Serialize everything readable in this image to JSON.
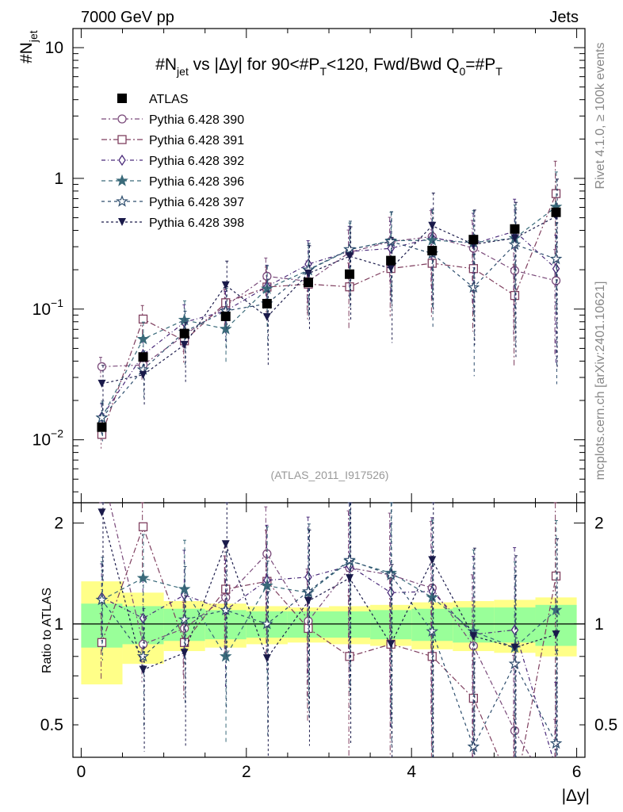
{
  "header": {
    "left": "7000 GeV pp",
    "right": "Jets"
  },
  "side_labels": {
    "rivet": "Rivet 4.1.0, ≥ 100k events",
    "mcplots": "mcplots.cern.ch [arXiv:2401.10621]"
  },
  "watermark": "(ATLAS_2011_I917526)",
  "colors": {
    "p390": "#7a4a7a",
    "p391": "#7f3f5f",
    "p392": "#4a2a7a",
    "p396": "#3a6a7a",
    "p397": "#2e4e6e",
    "p398": "#1a1a4a",
    "band_inner": "#99ff99",
    "band_outer": "#ffff88"
  },
  "chart_data": {
    "type": "scatter",
    "title": "#N_jet vs |Δy| for 90<#P_T<120, Fwd/Bwd Q0=#P_T",
    "title_parts": {
      "t1": "#N",
      "t1sub": "jet",
      "t2": " vs |Δy| for 90<#P",
      "t2sub": "T",
      "t3": "<120, Fwd/Bwd Q",
      "t3sub": "0",
      "t4": "=#P",
      "t4sub": "T"
    },
    "ylabel_parts": {
      "main": "#N",
      "sub": "jet"
    },
    "ratio_ylabel": "Ratio to ATLAS",
    "xlabel": "|Δy|",
    "x_range": [
      -0.1,
      6.1
    ],
    "y_range": [
      0.0033,
      14
    ],
    "y_scale": "log",
    "ratio_range": [
      0.4,
      2.3
    ],
    "x_ticks": [
      "0",
      "2",
      "4",
      "6"
    ],
    "y_ticks": [
      {
        "v": 10,
        "base": "10",
        "exp": ""
      },
      {
        "v": 1,
        "base": "1",
        "exp": ""
      },
      {
        "v": 0.1,
        "base": "10",
        "exp": "−1"
      },
      {
        "v": 0.01,
        "base": "10",
        "exp": "−2"
      }
    ],
    "ratio_ticks": [
      "0.5",
      "1",
      "2"
    ],
    "x": [
      0.25,
      0.75,
      1.25,
      1.75,
      2.25,
      2.75,
      3.25,
      3.75,
      4.25,
      4.75,
      5.25,
      5.75
    ],
    "atlas": {
      "name": "ATLAS",
      "values": [
        0.0125,
        0.043,
        0.065,
        0.088,
        0.11,
        0.16,
        0.185,
        0.235,
        0.28,
        0.34,
        0.41,
        0.55
      ],
      "band_inner": [
        0.15,
        0.13,
        0.11,
        0.1,
        0.09,
        0.09,
        0.09,
        0.1,
        0.11,
        0.12,
        0.12,
        0.14
      ],
      "band_outer": [
        0.34,
        0.24,
        0.17,
        0.15,
        0.13,
        0.12,
        0.13,
        0.14,
        0.16,
        0.17,
        0.18,
        0.2
      ]
    },
    "series": [
      {
        "name": "Pythia 6.428 390",
        "color_key": "p390",
        "marker": "circle",
        "dash": "6,3,2,3",
        "ratio": [
          2.9,
          0.87,
          0.97,
          1.2,
          1.62,
          1.02,
          1.47,
          1.4,
          1.28,
          0.86,
          0.48,
          0.3
        ]
      },
      {
        "name": "Pythia 6.428 391",
        "color_key": "p391",
        "marker": "square",
        "dash": "7,3,2,3",
        "ratio": [
          0.88,
          1.95,
          0.88,
          1.27,
          1.34,
          0.97,
          0.8,
          0.87,
          0.8,
          0.6,
          0.31,
          1.39
        ]
      },
      {
        "name": "Pythia 6.428 392",
        "color_key": "p392",
        "marker": "diamond",
        "dash": "5,3,1,3",
        "ratio": [
          1.2,
          1.04,
          1.22,
          1.1,
          1.35,
          1.38,
          1.49,
          1.24,
          1.25,
          0.93,
          0.96,
          0.37
        ]
      },
      {
        "name": "Pythia 6.428 396",
        "color_key": "p396",
        "marker": "star-filled",
        "dash": "5,4",
        "ratio": [
          1.18,
          1.37,
          1.27,
          0.8,
          1.3,
          1.24,
          1.54,
          1.42,
          1.2,
          0.95,
          0.85,
          1.1
        ]
      },
      {
        "name": "Pythia 6.428 397",
        "color_key": "p397",
        "marker": "star-open",
        "dash": "4,4",
        "ratio": [
          1.18,
          0.8,
          1.03,
          1.1,
          1.0,
          1.25,
          1.55,
          1.4,
          0.95,
          0.43,
          0.76,
          0.44
        ]
      },
      {
        "name": "Pythia 6.428 398",
        "color_key": "p398",
        "marker": "triangle-down",
        "dash": "3,3",
        "ratio": [
          2.15,
          0.73,
          0.82,
          1.73,
          0.79,
          1.17,
          1.37,
          0.87,
          1.55,
          0.92,
          0.85,
          0.93
        ]
      }
    ]
  }
}
